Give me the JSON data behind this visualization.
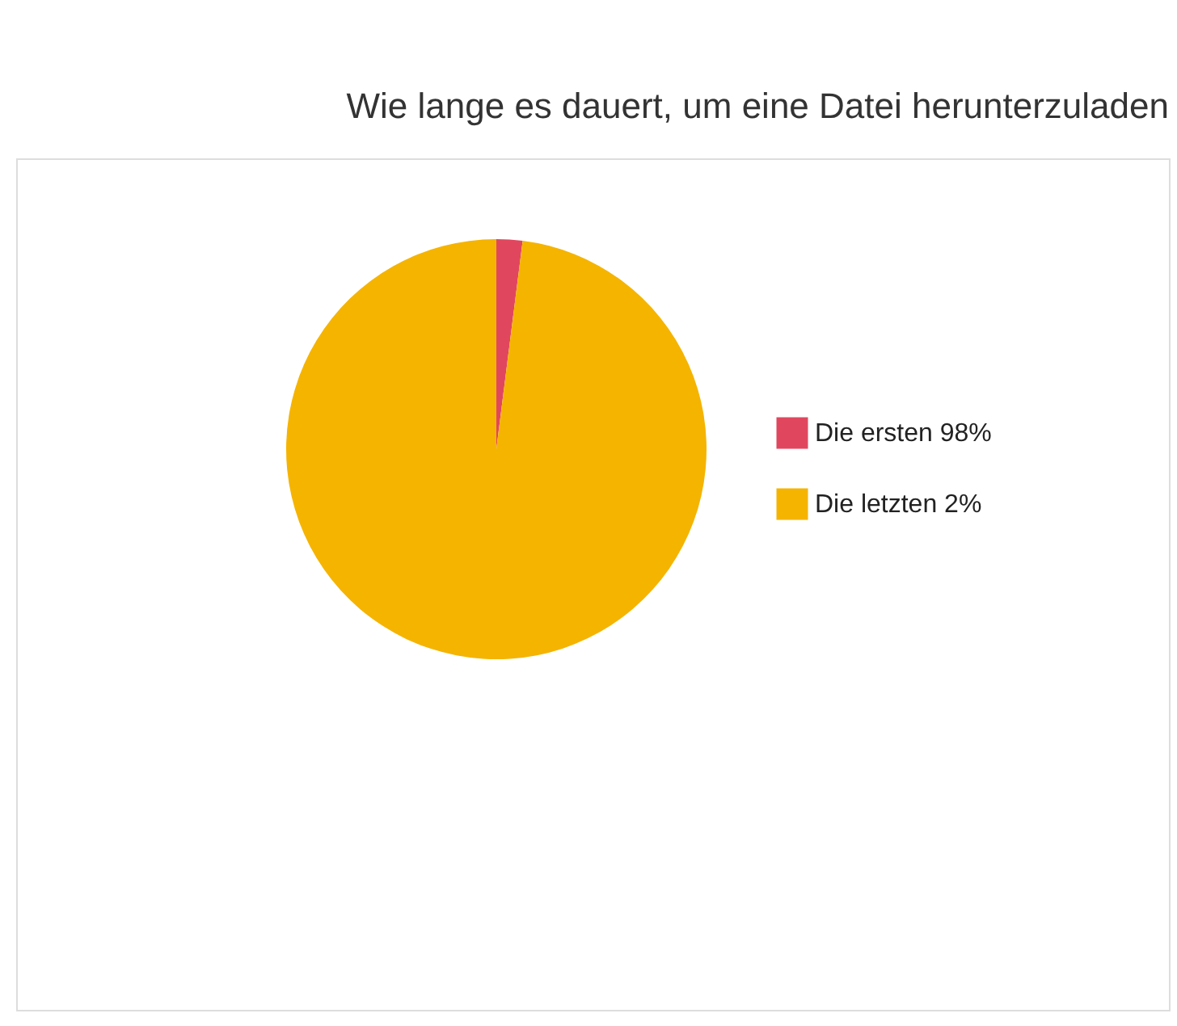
{
  "chart_data": {
    "type": "pie",
    "title": "Wie lange es dauert, um eine Datei herunterzuladen",
    "categories": [
      "Die ersten 98%",
      "Die letzten 2%"
    ],
    "values": [
      2,
      98
    ],
    "colors": [
      "#e0475e",
      "#f5b400"
    ],
    "legend": "right"
  }
}
